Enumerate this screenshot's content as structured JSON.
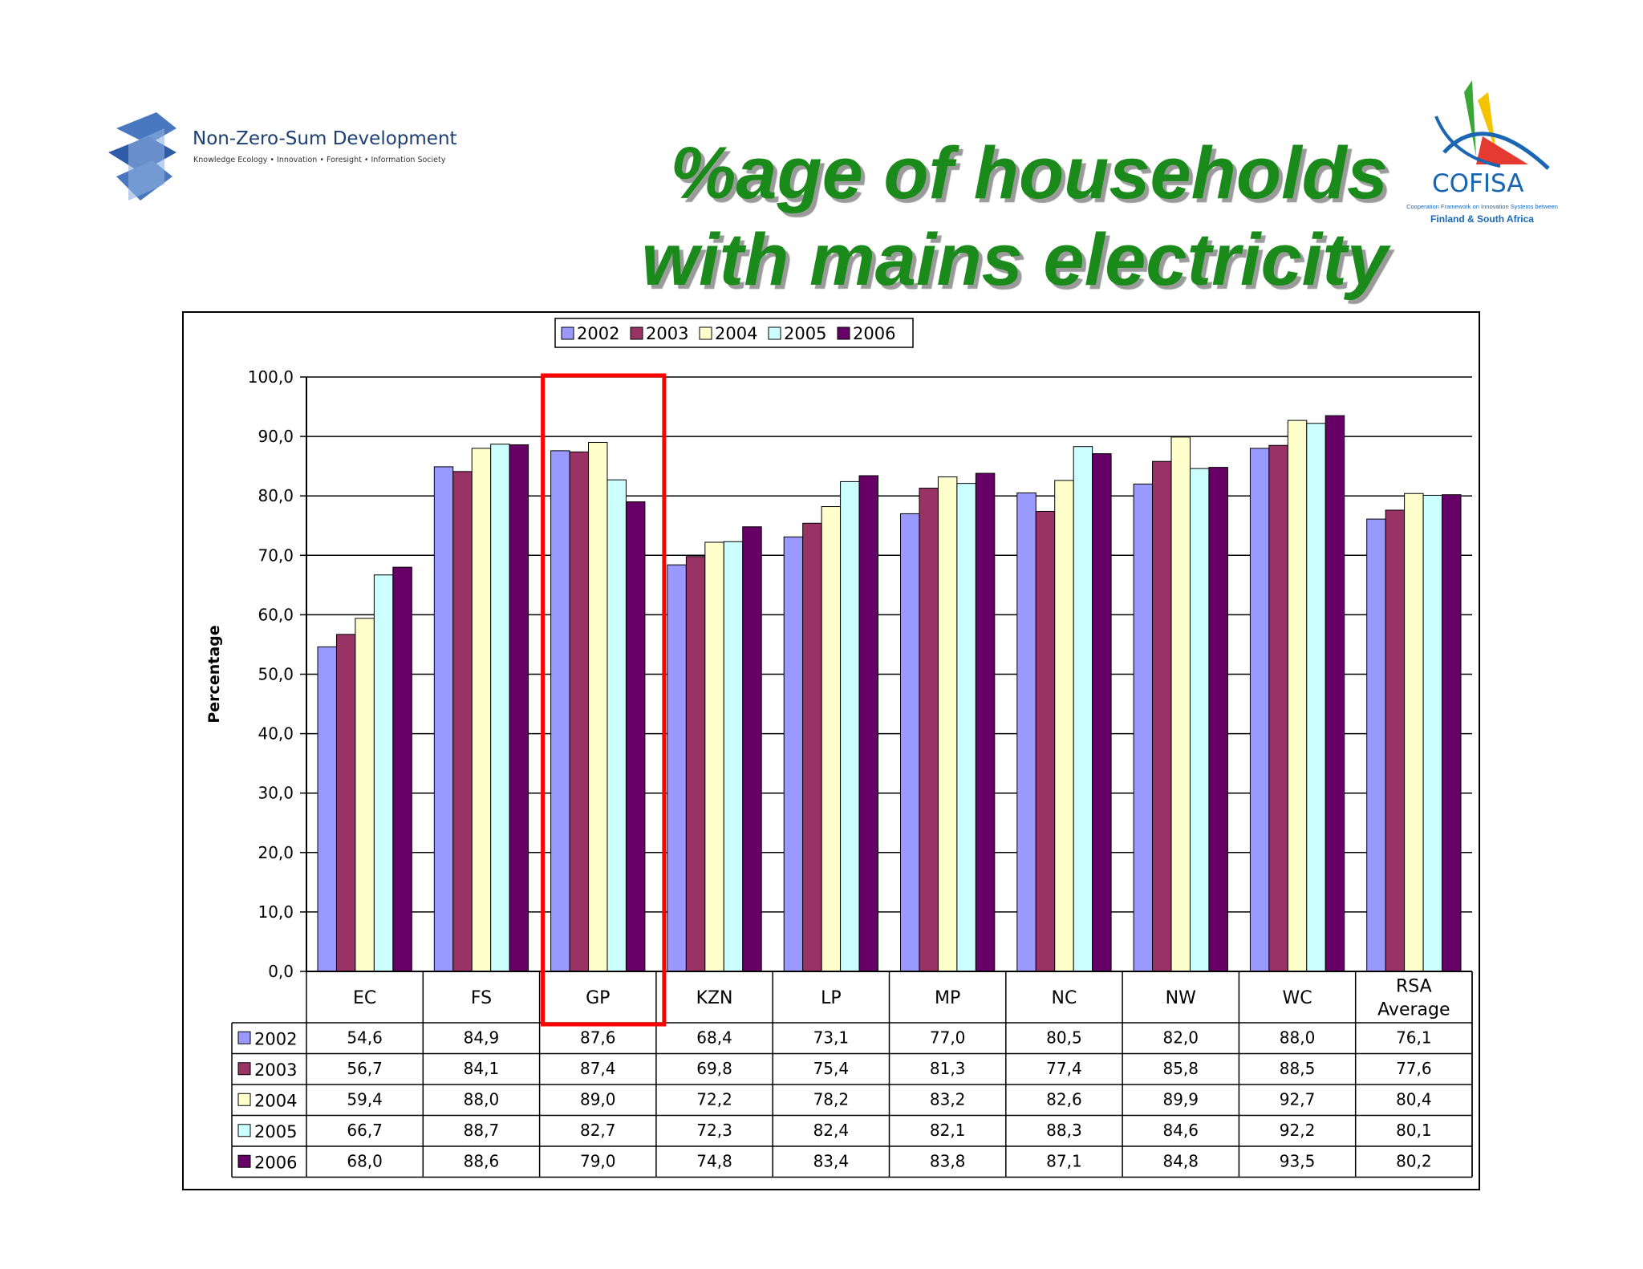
{
  "header": {
    "title_line1": "%age of households",
    "title_line2": "with mains electricity"
  },
  "logo_left": {
    "name": "Non-Zero-Sum Development",
    "tagline": "Knowledge Ecology • Innovation • Foresight • Information Society"
  },
  "logo_right": {
    "name": "COFISA",
    "tagline": "Cooperation Framework on Innovation Systems between",
    "tagline2": "Finland & South Africa"
  },
  "colors": {
    "title": "#1a8a1a",
    "highlight": "#ff0000",
    "series": [
      "#9999ff",
      "#993366",
      "#ffffcc",
      "#ccffff",
      "#660066"
    ]
  },
  "chart_data": {
    "type": "bar",
    "title": "",
    "xlabel": "",
    "ylabel": "Percentage",
    "ylim": [
      0,
      100
    ],
    "yticks": [
      "0,0",
      "10,0",
      "20,0",
      "30,0",
      "40,0",
      "50,0",
      "60,0",
      "70,0",
      "80,0",
      "90,0",
      "100,0"
    ],
    "grid": true,
    "legend": "top-center",
    "categories": [
      "EC",
      "FS",
      "GP",
      "KZN",
      "LP",
      "MP",
      "NC",
      "NW",
      "WC",
      "RSA Average"
    ],
    "category_lines": [
      [
        "EC"
      ],
      [
        "FS"
      ],
      [
        "GP"
      ],
      [
        "KZN"
      ],
      [
        "LP"
      ],
      [
        "MP"
      ],
      [
        "NC"
      ],
      [
        "NW"
      ],
      [
        "WC"
      ],
      [
        "RSA",
        "Average"
      ]
    ],
    "highlighted_category": "GP",
    "series": [
      {
        "name": "2002",
        "values": [
          54.6,
          84.9,
          87.6,
          68.4,
          73.1,
          77.0,
          80.5,
          82.0,
          88.0,
          76.1
        ],
        "labels": [
          "54,6",
          "84,9",
          "87,6",
          "68,4",
          "73,1",
          "77,0",
          "80,5",
          "82,0",
          "88,0",
          "76,1"
        ]
      },
      {
        "name": "2003",
        "values": [
          56.7,
          84.1,
          87.4,
          69.8,
          75.4,
          81.3,
          77.4,
          85.8,
          88.5,
          77.6
        ],
        "labels": [
          "56,7",
          "84,1",
          "87,4",
          "69,8",
          "75,4",
          "81,3",
          "77,4",
          "85,8",
          "88,5",
          "77,6"
        ]
      },
      {
        "name": "2004",
        "values": [
          59.4,
          88.0,
          89.0,
          72.2,
          78.2,
          83.2,
          82.6,
          89.9,
          92.7,
          80.4
        ],
        "labels": [
          "59,4",
          "88,0",
          "89,0",
          "72,2",
          "78,2",
          "83,2",
          "82,6",
          "89,9",
          "92,7",
          "80,4"
        ]
      },
      {
        "name": "2005",
        "values": [
          66.7,
          88.7,
          82.7,
          72.3,
          82.4,
          82.1,
          88.3,
          84.6,
          92.2,
          80.1
        ],
        "labels": [
          "66,7",
          "88,7",
          "82,7",
          "72,3",
          "82,4",
          "82,1",
          "88,3",
          "84,6",
          "92,2",
          "80,1"
        ]
      },
      {
        "name": "2006",
        "values": [
          68.0,
          88.6,
          79.0,
          74.8,
          83.4,
          83.8,
          87.1,
          84.8,
          93.5,
          80.2
        ],
        "labels": [
          "68,0",
          "88,6",
          "79,0",
          "74,8",
          "83,4",
          "83,8",
          "87,1",
          "84,8",
          "93,5",
          "80,2"
        ]
      }
    ]
  }
}
